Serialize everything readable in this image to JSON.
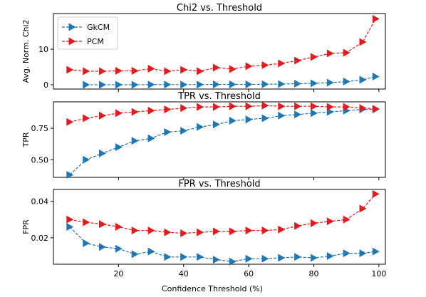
{
  "colors": {
    "gkcm": "#1f77b4",
    "pcm": "#e41a1c",
    "axes": "#000000"
  },
  "xlabel": "Confidence Threshold (%)",
  "x_ticks": [
    "20",
    "40",
    "60",
    "80",
    "100"
  ],
  "chart_data": [
    {
      "type": "line",
      "title": "Chi2 vs. Threshold",
      "ylabel": "Avg. Norm. Chi2",
      "xlim": [
        0,
        102
      ],
      "ylim": [
        -1.2,
        20
      ],
      "y_ticks": [
        "0",
        "10"
      ],
      "legend": "top-left",
      "x": [
        5,
        10,
        15,
        20,
        25,
        30,
        35,
        40,
        45,
        50,
        55,
        60,
        65,
        70,
        75,
        80,
        85,
        90,
        95,
        99
      ],
      "series": [
        {
          "name": "GkCM",
          "marker": "triangle-right",
          "values": [
            null,
            0.0,
            0.0,
            0.0,
            0.0,
            0.05,
            0.05,
            0.05,
            0.05,
            0.1,
            0.1,
            0.1,
            0.15,
            0.2,
            0.3,
            0.4,
            0.6,
            0.9,
            1.4,
            2.3
          ]
        },
        {
          "name": "PCM",
          "marker": "triangle-right",
          "values": [
            4.2,
            3.8,
            3.8,
            3.9,
            3.9,
            4.5,
            3.8,
            4.2,
            3.8,
            4.8,
            4.4,
            5.2,
            5.5,
            6.0,
            6.8,
            7.8,
            8.8,
            9.0,
            12.0,
            18.5
          ]
        }
      ]
    },
    {
      "type": "line",
      "title": "TPR vs. Threshold",
      "ylabel": "TPR",
      "xlim": [
        0,
        102
      ],
      "ylim": [
        0.36,
        0.96
      ],
      "y_ticks": [
        "0.50",
        "0.75"
      ],
      "x": [
        5,
        10,
        15,
        20,
        25,
        30,
        35,
        40,
        45,
        50,
        55,
        60,
        65,
        70,
        75,
        80,
        85,
        90,
        95,
        99
      ],
      "series": [
        {
          "name": "GkCM",
          "marker": "triangle-right",
          "values": [
            0.38,
            0.5,
            0.55,
            0.6,
            0.65,
            0.67,
            0.72,
            0.73,
            0.76,
            0.78,
            0.81,
            0.82,
            0.83,
            0.85,
            0.86,
            0.87,
            0.88,
            0.89,
            0.9,
            0.9
          ]
        },
        {
          "name": "PCM",
          "marker": "triangle-right",
          "values": [
            0.8,
            0.83,
            0.85,
            0.87,
            0.88,
            0.89,
            0.9,
            0.91,
            0.92,
            0.92,
            0.925,
            0.925,
            0.93,
            0.925,
            0.925,
            0.925,
            0.92,
            0.92,
            0.91,
            0.905
          ]
        }
      ]
    },
    {
      "type": "line",
      "title": "FPR vs. Threshold",
      "ylabel": "FPR",
      "xlim": [
        0,
        102
      ],
      "ylim": [
        0.0055,
        0.0465
      ],
      "y_ticks": [
        "0.02",
        "0.04"
      ],
      "x": [
        5,
        10,
        15,
        20,
        25,
        30,
        35,
        40,
        45,
        50,
        55,
        60,
        65,
        70,
        75,
        80,
        85,
        90,
        95,
        99
      ],
      "series": [
        {
          "name": "GkCM",
          "marker": "triangle-right",
          "values": [
            0.026,
            0.017,
            0.015,
            0.014,
            0.011,
            0.0125,
            0.0095,
            0.0095,
            0.0095,
            0.008,
            0.007,
            0.0085,
            0.0085,
            0.009,
            0.0095,
            0.009,
            0.01,
            0.0115,
            0.0115,
            0.0125
          ]
        },
        {
          "name": "PCM",
          "marker": "triangle-right",
          "values": [
            0.03,
            0.0285,
            0.0275,
            0.026,
            0.024,
            0.024,
            0.023,
            0.0225,
            0.023,
            0.0235,
            0.0235,
            0.024,
            0.024,
            0.0245,
            0.0265,
            0.028,
            0.029,
            0.03,
            0.036,
            0.044
          ]
        }
      ]
    }
  ]
}
